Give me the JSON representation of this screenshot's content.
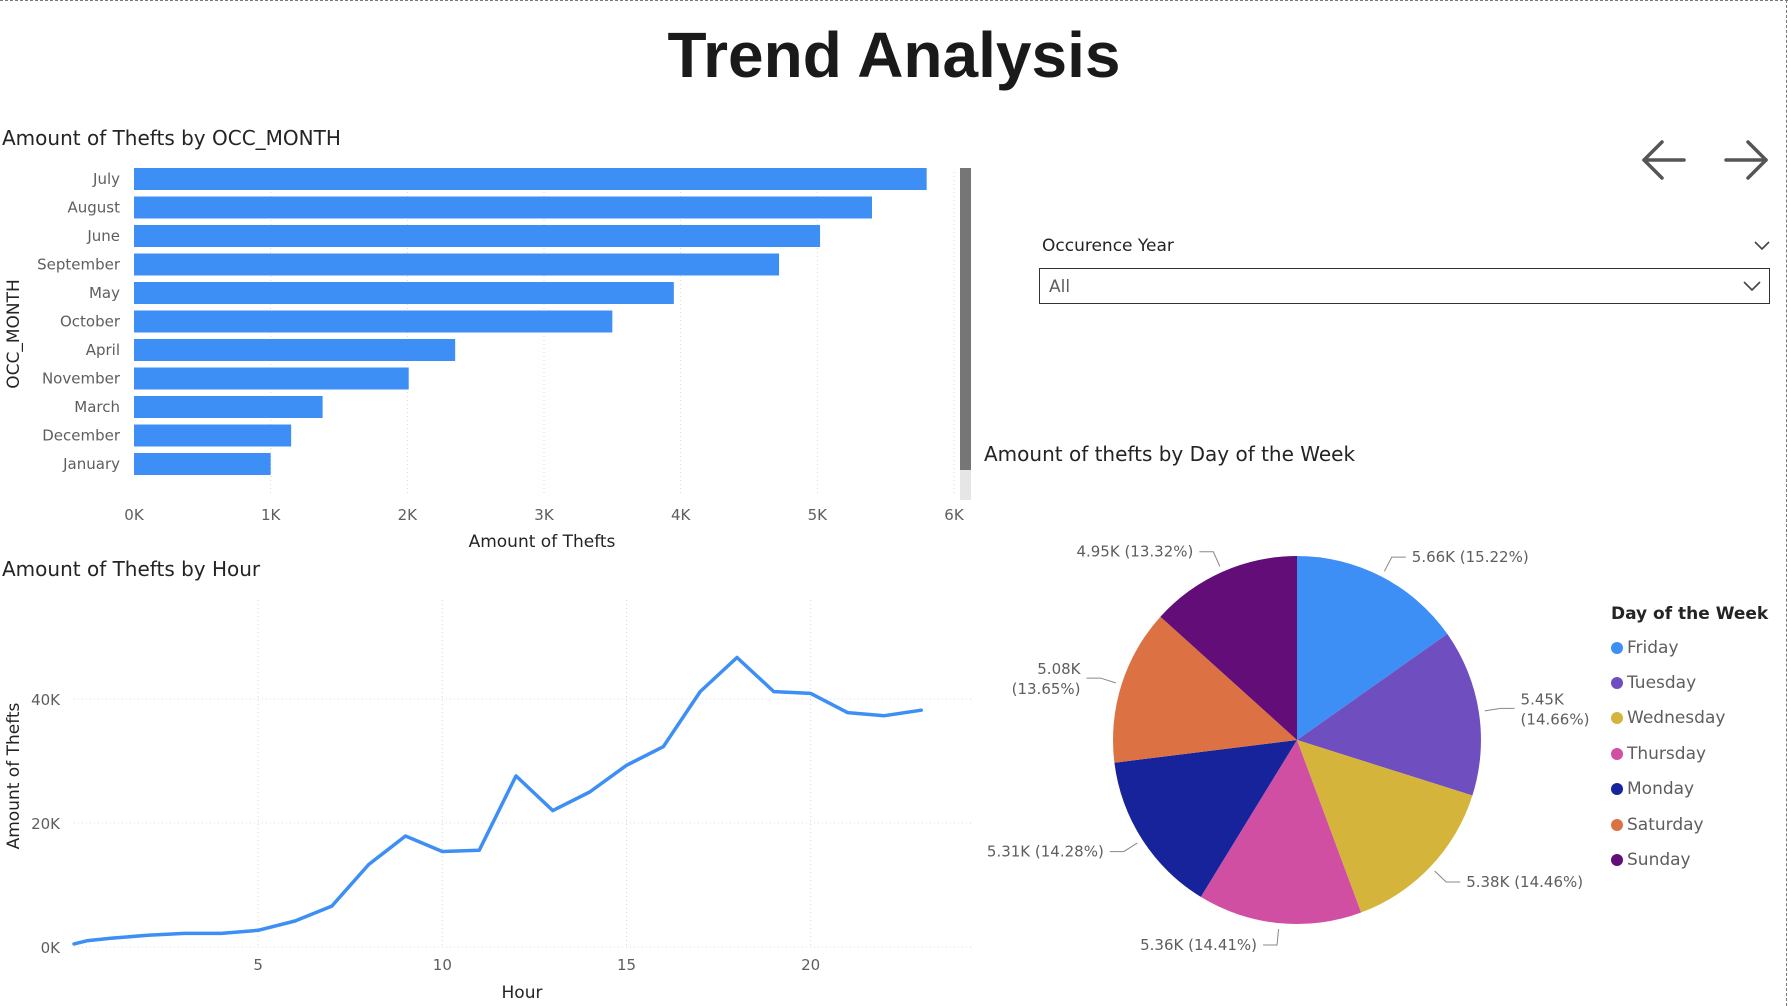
{
  "page": {
    "title": "Trend Analysis"
  },
  "nav": {
    "back_icon": "arrow-left-icon",
    "forward_icon": "arrow-right-icon"
  },
  "slicer": {
    "label": "Occurence Year",
    "value": "All"
  },
  "colors": {
    "bar": "#3d8ff5",
    "line": "#3d8ff5",
    "gridline": "#d9d9d9",
    "pie": {
      "Friday": "#3d8ff5",
      "Tuesday": "#6f4fc0",
      "Wednesday": "#d4b43a",
      "Thursday": "#d14fa3",
      "Monday": "#17239a",
      "Saturday": "#dc7243",
      "Sunday": "#630e78"
    }
  },
  "chart_data": [
    {
      "type": "bar",
      "orientation": "horizontal",
      "title": "Amount of Thefts by OCC_MONTH",
      "xlabel": "Amount of Thefts",
      "ylabel": "OCC_MONTH",
      "categories": [
        "July",
        "August",
        "June",
        "September",
        "May",
        "October",
        "April",
        "November",
        "March",
        "December",
        "January"
      ],
      "values": [
        5800,
        5400,
        5020,
        4720,
        3950,
        3500,
        2350,
        2010,
        1380,
        1150,
        1000
      ],
      "xlim": [
        0,
        6000
      ],
      "xticks": [
        "0K",
        "1K",
        "2K",
        "3K",
        "4K",
        "5K",
        "6K"
      ],
      "grid": true
    },
    {
      "type": "line",
      "title": "Amount of Thefts by Hour",
      "xlabel": "Hour",
      "ylabel": "Amount of Thefts",
      "x": [
        0,
        0.35,
        1,
        2,
        3,
        4,
        5,
        6,
        7,
        8,
        9,
        10,
        11,
        12,
        13,
        14,
        15,
        16,
        17,
        18,
        19,
        20,
        21,
        22,
        23
      ],
      "values": [
        500,
        1000,
        1400,
        1900,
        2200,
        2200,
        2700,
        4200,
        6600,
        13300,
        17900,
        15400,
        15600,
        27600,
        22000,
        25000,
        29300,
        32300,
        41200,
        46700,
        41200,
        40900,
        37800,
        37300,
        38200
      ],
      "xlim": [
        0,
        24
      ],
      "ylim": [
        0,
        50000
      ],
      "xticks": [
        5,
        10,
        15,
        20
      ],
      "yticks": [
        {
          "v": 0,
          "label": "0K"
        },
        {
          "v": 20000,
          "label": "20K"
        },
        {
          "v": 40000,
          "label": "40K"
        }
      ],
      "grid": true
    },
    {
      "type": "pie",
      "title": "Amount of thefts by Day of the Week",
      "legend_title": "Day of the Week",
      "legend_position": "right",
      "slices": [
        {
          "label": "Friday",
          "value": 5660,
          "display": "5.66K (15.22%)",
          "share": 15.22
        },
        {
          "label": "Tuesday",
          "value": 5450,
          "display": "5.45K (14.66%)",
          "share": 14.66
        },
        {
          "label": "Wednesday",
          "value": 5380,
          "display": "5.38K (14.46%)",
          "share": 14.46
        },
        {
          "label": "Thursday",
          "value": 5360,
          "display": "5.36K (14.41%)",
          "share": 14.41
        },
        {
          "label": "Monday",
          "value": 5310,
          "display": "5.31K (14.28%)",
          "share": 14.28
        },
        {
          "label": "Saturday",
          "value": 5080,
          "display": "5.08K (13.65%)",
          "share": 13.65
        },
        {
          "label": "Sunday",
          "value": 4950,
          "display": "4.95K (13.32%)",
          "share": 13.32
        }
      ]
    }
  ]
}
